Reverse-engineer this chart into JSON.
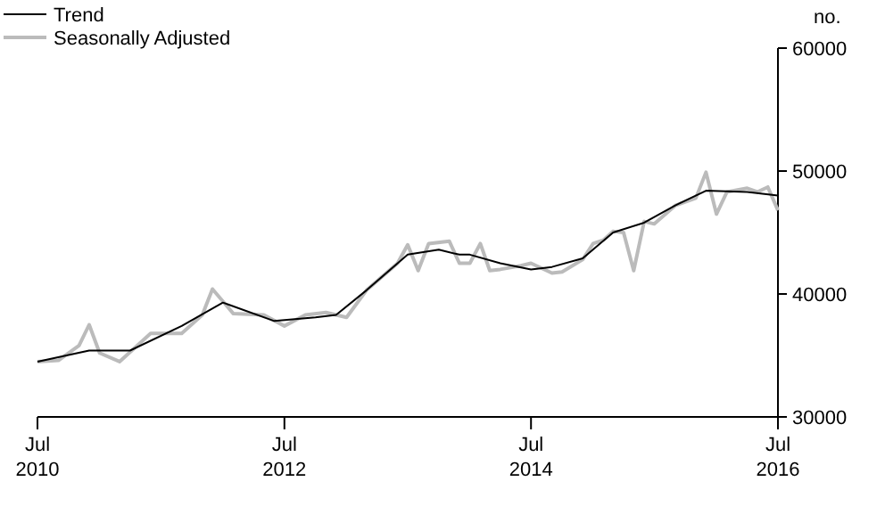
{
  "chart_data": {
    "type": "line",
    "ylabel": "no.",
    "legend": "top left",
    "grid": false,
    "xlim": [
      "2010-07",
      "2016-07"
    ],
    "xticks": [
      {
        "value": "2010-07",
        "label": "Jul 2010"
      },
      {
        "value": "2012-07",
        "label": "Jul 2012"
      },
      {
        "value": "2014-07",
        "label": "Jul 2014"
      },
      {
        "value": "2016-07",
        "label": "Jul 2016"
      }
    ],
    "ylim": [
      30000,
      60000
    ],
    "yticks": [
      30000,
      40000,
      50000,
      60000
    ],
    "series": [
      {
        "name": "Trend",
        "color": "#000000",
        "x": [
          "2010-07",
          "2010-12",
          "2011-04",
          "2011-09",
          "2012-01",
          "2012-06",
          "2012-10",
          "2012-12",
          "2013-03",
          "2013-07",
          "2013-10",
          "2013-12",
          "2014-01",
          "2014-04",
          "2014-07",
          "2014-09",
          "2014-12",
          "2015-03",
          "2015-06",
          "2015-09",
          "2015-12",
          "2016-04",
          "2016-07"
        ],
        "values": [
          34500,
          35400,
          35400,
          37400,
          39300,
          37800,
          38100,
          38300,
          40300,
          43200,
          43600,
          43200,
          43200,
          42500,
          42000,
          42200,
          42900,
          45000,
          45800,
          47200,
          48400,
          48300,
          48000
        ]
      },
      {
        "name": "Seasonally Adjusted",
        "color": "#bbbbbb",
        "x": [
          "2010-07",
          "2010-09",
          "2010-11",
          "2010-12",
          "2011-01",
          "2011-03",
          "2011-06",
          "2011-09",
          "2011-11",
          "2011-12",
          "2012-02",
          "2012-05",
          "2012-07",
          "2012-09",
          "2012-11",
          "2013-01",
          "2013-03",
          "2013-06",
          "2013-07",
          "2013-08",
          "2013-09",
          "2013-11",
          "2013-12",
          "2014-01",
          "2014-02",
          "2014-03",
          "2014-04",
          "2014-06",
          "2014-07",
          "2014-09",
          "2014-10",
          "2014-12",
          "2015-01",
          "2015-02",
          "2015-03",
          "2015-04",
          "2015-05",
          "2015-06",
          "2015-07",
          "2015-09",
          "2015-11",
          "2015-12",
          "2016-01",
          "2016-02",
          "2016-04",
          "2016-05",
          "2016-06",
          "2016-07"
        ],
        "values": [
          34500,
          34600,
          35800,
          37500,
          35200,
          34500,
          36800,
          36800,
          38300,
          40400,
          38400,
          38300,
          37400,
          38300,
          38500,
          38100,
          40300,
          42500,
          44000,
          41900,
          44100,
          44300,
          42500,
          42500,
          44100,
          41900,
          42000,
          42300,
          42500,
          41700,
          41800,
          42800,
          44100,
          44400,
          45100,
          45000,
          41900,
          45900,
          45700,
          47200,
          47800,
          49900,
          46500,
          48300,
          48600,
          48300,
          48700,
          46800
        ]
      }
    ]
  }
}
